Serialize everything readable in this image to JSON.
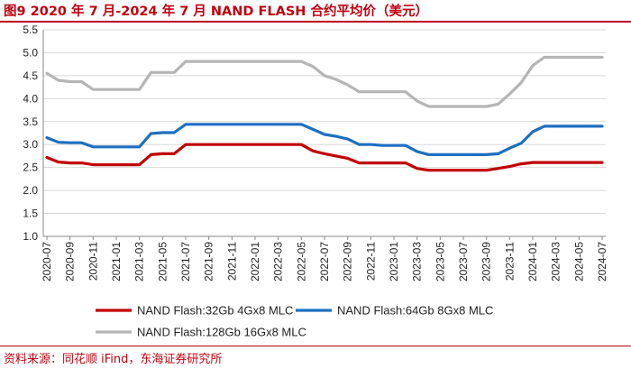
{
  "title": "图9  2020 年 7 月-2024 年 7 月 NAND FLASH 合约平均价（美元）",
  "source": "资料来源：同花顺 iFind，东海证券研究所",
  "colors": {
    "accent": "#c0000f",
    "series": [
      "#c00000",
      "#1e6fc0",
      "#b5b5b5"
    ]
  },
  "chart_data": {
    "type": "line",
    "title": "2020 年 7 月-2024 年 7 月 NAND FLASH 合约平均价（美元）",
    "xlabel": "",
    "ylabel": "",
    "ylim": [
      1.0,
      5.5
    ],
    "yticks": [
      "1.0",
      "1.5",
      "2.0",
      "2.5",
      "3.0",
      "3.5",
      "4.0",
      "4.5",
      "5.0",
      "5.5"
    ],
    "grid": true,
    "legend_position": "bottom",
    "x": [
      "2020-07",
      "2020-08",
      "2020-09",
      "2020-10",
      "2020-11",
      "2020-12",
      "2021-01",
      "2021-02",
      "2021-03",
      "2021-04",
      "2021-05",
      "2021-06",
      "2021-07",
      "2021-08",
      "2021-09",
      "2021-10",
      "2021-11",
      "2021-12",
      "2022-01",
      "2022-02",
      "2022-03",
      "2022-04",
      "2022-05",
      "2022-06",
      "2022-07",
      "2022-08",
      "2022-09",
      "2022-10",
      "2022-11",
      "2022-12",
      "2023-01",
      "2023-02",
      "2023-03",
      "2023-04",
      "2023-05",
      "2023-06",
      "2023-07",
      "2023-08",
      "2023-09",
      "2023-10",
      "2023-11",
      "2023-12",
      "2024-01",
      "2024-02",
      "2024-03",
      "2024-04",
      "2024-05",
      "2024-06",
      "2024-07"
    ],
    "xticks": [
      "2020-07",
      "2020-09",
      "2020-11",
      "2021-01",
      "2021-03",
      "2021-05",
      "2021-07",
      "2021-09",
      "2021-11",
      "2022-01",
      "2022-03",
      "2022-05",
      "2022-07",
      "2022-09",
      "2022-11",
      "2023-01",
      "2023-03",
      "2023-05",
      "2023-07",
      "2023-09",
      "2023-11",
      "2024-01",
      "2024-03",
      "2024-05",
      "2024-07"
    ],
    "series": [
      {
        "name": "NAND Flash:32Gb 4Gx8 MLC",
        "values": [
          2.72,
          2.62,
          2.6,
          2.6,
          2.56,
          2.56,
          2.56,
          2.56,
          2.56,
          2.78,
          2.8,
          2.8,
          3.0,
          3.0,
          3.0,
          3.0,
          3.0,
          3.0,
          3.0,
          3.0,
          3.0,
          3.0,
          3.0,
          2.86,
          2.8,
          2.75,
          2.7,
          2.6,
          2.6,
          2.6,
          2.6,
          2.6,
          2.48,
          2.44,
          2.44,
          2.44,
          2.44,
          2.44,
          2.44,
          2.48,
          2.52,
          2.58,
          2.61,
          2.61,
          2.61,
          2.61,
          2.61,
          2.61,
          2.61
        ]
      },
      {
        "name": "NAND Flash:64Gb 8Gx8 MLC",
        "values": [
          3.15,
          3.05,
          3.04,
          3.04,
          2.95,
          2.95,
          2.95,
          2.95,
          2.95,
          3.24,
          3.26,
          3.26,
          3.44,
          3.44,
          3.44,
          3.44,
          3.44,
          3.44,
          3.44,
          3.44,
          3.44,
          3.44,
          3.44,
          3.33,
          3.22,
          3.18,
          3.12,
          3.0,
          3.0,
          2.98,
          2.98,
          2.98,
          2.85,
          2.78,
          2.78,
          2.78,
          2.78,
          2.78,
          2.78,
          2.8,
          2.92,
          3.03,
          3.28,
          3.4,
          3.4,
          3.4,
          3.4,
          3.4,
          3.4
        ]
      },
      {
        "name": "NAND Flash:128Gb 16Gx8 MLC",
        "values": [
          4.55,
          4.4,
          4.37,
          4.37,
          4.2,
          4.2,
          4.2,
          4.2,
          4.2,
          4.57,
          4.57,
          4.57,
          4.81,
          4.81,
          4.81,
          4.81,
          4.81,
          4.81,
          4.81,
          4.81,
          4.81,
          4.81,
          4.81,
          4.7,
          4.5,
          4.42,
          4.3,
          4.15,
          4.15,
          4.15,
          4.15,
          4.15,
          3.95,
          3.83,
          3.83,
          3.83,
          3.83,
          3.83,
          3.83,
          3.88,
          4.1,
          4.35,
          4.72,
          4.9,
          4.9,
          4.9,
          4.9,
          4.9,
          4.9
        ]
      }
    ]
  }
}
